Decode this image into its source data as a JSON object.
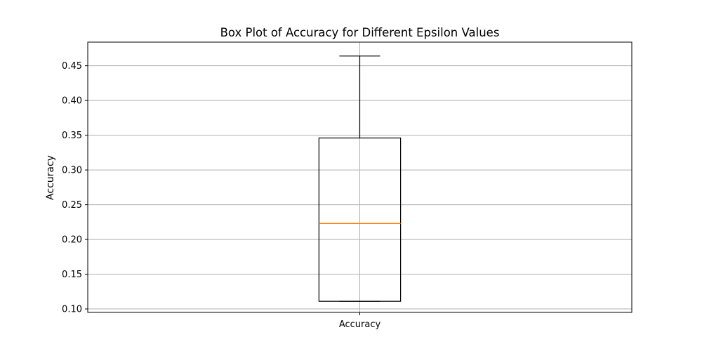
{
  "chart_data": {
    "type": "box",
    "title": "Box Plot of Accuracy for Different Epsilon Values",
    "xlabel": "",
    "ylabel": "Accuracy",
    "categories": [
      "Accuracy"
    ],
    "boxes": [
      {
        "category": "Accuracy",
        "whisker_low": 0.111,
        "q1": 0.111,
        "median": 0.223,
        "q3": 0.346,
        "whisker_high": 0.464
      }
    ],
    "ylim": [
      0.095,
      0.484
    ],
    "yticks": [
      0.1,
      0.15,
      0.2,
      0.25,
      0.3,
      0.35,
      0.4,
      0.45
    ],
    "ytick_labels": [
      "0.10",
      "0.15",
      "0.20",
      "0.25",
      "0.30",
      "0.35",
      "0.40",
      "0.45"
    ],
    "grid": true,
    "colors": {
      "box": "#000000",
      "median": "#ff7f0e",
      "grid": "#b0b0b0"
    }
  }
}
